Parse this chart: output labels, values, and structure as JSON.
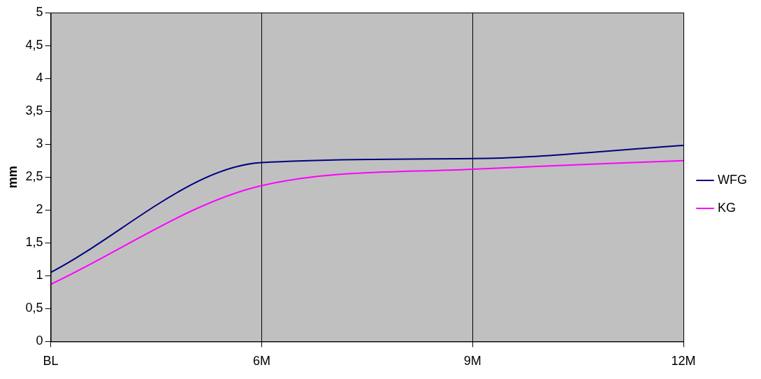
{
  "chart_data": {
    "type": "line",
    "ylabel": "mm",
    "categories": [
      "BL",
      "6M",
      "9M",
      "12M"
    ],
    "series": [
      {
        "name": "WFG",
        "color": "#000080",
        "values": [
          1.05,
          2.72,
          2.78,
          2.98
        ]
      },
      {
        "name": "KG",
        "color": "#ff00ff",
        "values": [
          0.87,
          2.37,
          2.62,
          2.75
        ]
      }
    ],
    "ylim": [
      0,
      5
    ],
    "yticks": [
      0,
      {
        "value": 0.5,
        "label": "0,5"
      },
      1,
      {
        "value": 1.5,
        "label": "1,5"
      },
      2,
      {
        "value": 2.5,
        "label": "2,5"
      },
      3,
      {
        "value": 3.5,
        "label": "3,5"
      },
      4,
      {
        "value": 4.5,
        "label": "4,5"
      },
      5
    ],
    "grid": "x",
    "legend": "right",
    "marker": "none",
    "line_style": "solid"
  }
}
